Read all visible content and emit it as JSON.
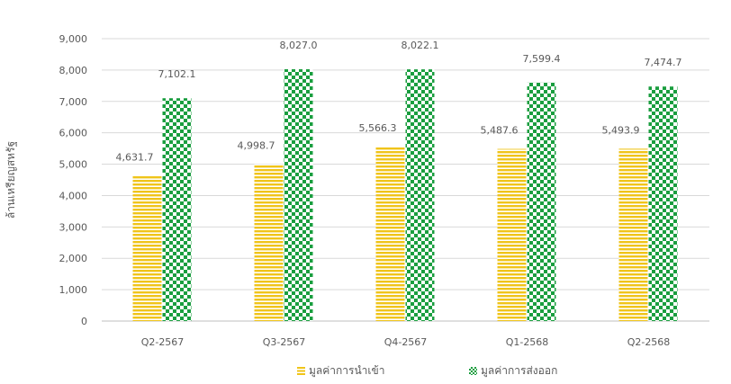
{
  "chart_data": {
    "type": "bar",
    "title": "",
    "ylabel": "ล้านเหรียญสหรัฐ",
    "xlabel": "",
    "categories": [
      "Q2-2567",
      "Q3-2567",
      "Q4-2567",
      "Q1-2568",
      "Q2-2568"
    ],
    "ylim": [
      0,
      9000
    ],
    "yticks": [
      "0",
      "1,000",
      "2,000",
      "3,000",
      "4,000",
      "5,000",
      "6,000",
      "7,000",
      "8,000",
      "9,000"
    ],
    "grid": true,
    "legend_position": "bottom",
    "series": [
      {
        "name": "มูลค่าการนำเข้า",
        "values": [
          4631.7,
          4998.7,
          5566.3,
          5487.6,
          5493.9
        ],
        "labels": [
          "4,631.7",
          "4,998.7",
          "5,566.3",
          "5,487.6",
          "5,493.9"
        ],
        "color": "#f0c419",
        "pattern": "horizontal-stripes"
      },
      {
        "name": "มูลค่าการส่งออก",
        "values": [
          7102.1,
          8027.0,
          8022.1,
          7599.4,
          7474.7
        ],
        "labels": [
          "7,102.1",
          "8,027.0",
          "8,022.1",
          "7,599.4",
          "7,474.7"
        ],
        "color": "#1a9e3f",
        "pattern": "checkerboard"
      }
    ]
  }
}
